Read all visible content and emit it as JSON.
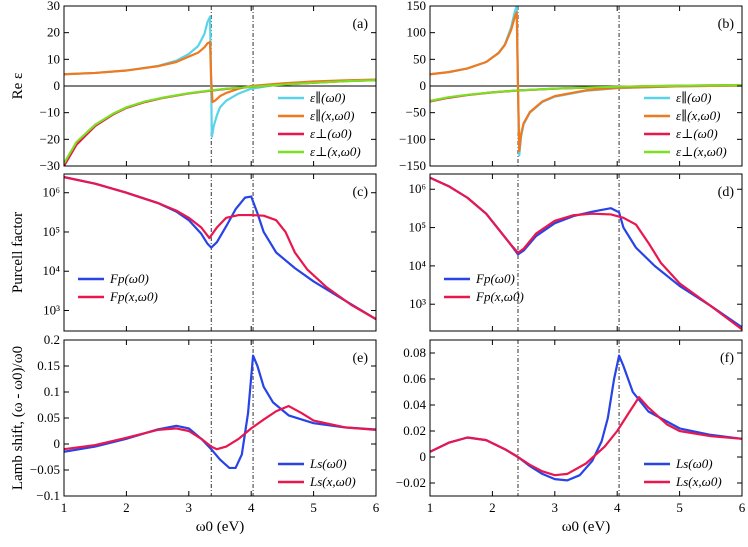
{
  "chart_data": [
    {
      "id": "a",
      "type": "line",
      "panel_label": "(a)",
      "ylabel": "Re ε",
      "xlabel": "",
      "x_scale": "linear",
      "y_scale": "linear",
      "xlim": [
        1,
        6
      ],
      "ylim": [
        -30,
        30
      ],
      "xticks": [
        1,
        2,
        3,
        4,
        5,
        6
      ],
      "xtick_labels": [
        "",
        "",
        "",
        "",
        "",
        ""
      ],
      "yticks": [
        -30,
        -20,
        -10,
        0,
        10,
        20,
        30
      ],
      "ytick_labels": [
        "−30",
        "−20",
        "−10",
        "0",
        "10",
        "20",
        "30"
      ],
      "zero_line": true,
      "vlines": [
        3.36,
        4.03
      ],
      "legend_position": "lower-right",
      "series": [
        {
          "name": "ε∥(ω0)",
          "color": "#5ad3ea",
          "x": [
            1,
            1.5,
            2,
            2.5,
            2.8,
            3,
            3.15,
            3.25,
            3.3,
            3.34,
            3.36,
            3.37,
            3.4,
            3.45,
            3.5,
            3.6,
            3.8,
            4,
            4.5,
            5,
            5.5,
            6
          ],
          "y": [
            4.4,
            4.9,
            5.8,
            7.5,
            9.5,
            12,
            15,
            19.5,
            24,
            26,
            -3,
            -19,
            -15,
            -11,
            -8,
            -5.5,
            -2.8,
            -1,
            0.8,
            1.6,
            2,
            2.3
          ]
        },
        {
          "name": "ε∥(x,ω0)",
          "color": "#f0781e",
          "x": [
            1,
            1.5,
            2,
            2.5,
            2.8,
            3,
            3.15,
            3.25,
            3.3,
            3.34,
            3.36,
            3.38,
            3.42,
            3.5,
            3.6,
            3.8,
            4,
            4.5,
            5,
            5.5,
            6
          ],
          "y": [
            4.4,
            4.9,
            5.8,
            7.4,
            9,
            11,
            12.5,
            14.5,
            16,
            16.5,
            2,
            -6,
            -5.5,
            -3.8,
            -2.6,
            -1,
            0,
            1,
            1.7,
            2.1,
            2.4
          ]
        },
        {
          "name": "ε⊥(ω0)",
          "color": "#e8174e",
          "x": [
            1,
            1.2,
            1.5,
            1.8,
            2,
            2.3,
            2.6,
            3,
            3.3,
            3.6,
            4,
            4.3,
            4.6,
            5,
            5.5,
            6
          ],
          "y": [
            -30,
            -22,
            -15,
            -10.5,
            -8.2,
            -6,
            -4.4,
            -2.8,
            -1.9,
            -1.1,
            -0.3,
            0.2,
            0.7,
            1.2,
            1.8,
            2.2
          ]
        },
        {
          "name": "ε⊥(x,ω0)",
          "color": "#7be021",
          "x": [
            1,
            1.2,
            1.5,
            1.8,
            2,
            2.3,
            2.6,
            3,
            3.3,
            3.6,
            4,
            4.3,
            4.6,
            5,
            5.5,
            6
          ],
          "y": [
            -29,
            -21,
            -14.5,
            -10.2,
            -8,
            -5.8,
            -4.3,
            -2.7,
            -1.8,
            -1,
            -0.3,
            0.2,
            0.7,
            1.2,
            1.8,
            2.2
          ]
        }
      ]
    },
    {
      "id": "b",
      "type": "line",
      "panel_label": "(b)",
      "ylabel": "",
      "xlabel": "",
      "x_scale": "linear",
      "y_scale": "linear",
      "xlim": [
        1,
        6
      ],
      "ylim": [
        -150,
        150
      ],
      "xticks": [
        1,
        2,
        3,
        4,
        5,
        6
      ],
      "xtick_labels": [
        "",
        "",
        "",
        "",
        "",
        ""
      ],
      "yticks": [
        -150,
        -100,
        -50,
        0,
        50,
        100,
        150
      ],
      "ytick_labels": [
        "−150",
        "−100",
        "−50",
        "0",
        "50",
        "100",
        "150"
      ],
      "zero_line": true,
      "vlines": [
        2.41,
        4.03
      ],
      "legend_position": "lower-right",
      "series": [
        {
          "name": "ε∥(ω0)",
          "color": "#5ad3ea",
          "x": [
            1,
            1.3,
            1.6,
            1.9,
            2.1,
            2.2,
            2.3,
            2.36,
            2.39,
            2.41,
            2.43,
            2.46,
            2.5,
            2.6,
            2.8,
            3,
            3.5,
            4,
            5,
            6
          ],
          "y": [
            22,
            26,
            33,
            45,
            62,
            78,
            110,
            140,
            150,
            0,
            -130,
            -95,
            -72,
            -50,
            -30,
            -20,
            -9,
            -4,
            -0.5,
            0.8
          ]
        },
        {
          "name": "ε∥(x,ω0)",
          "color": "#f0781e",
          "x": [
            1,
            1.3,
            1.6,
            1.9,
            2.1,
            2.2,
            2.3,
            2.36,
            2.39,
            2.41,
            2.43,
            2.46,
            2.5,
            2.6,
            2.8,
            3,
            3.5,
            4,
            5,
            6
          ],
          "y": [
            22,
            26,
            33,
            45,
            62,
            77,
            105,
            130,
            138,
            0,
            -122,
            -90,
            -70,
            -49,
            -29,
            -19,
            -8,
            -3.5,
            -0.5,
            0.8
          ]
        },
        {
          "name": "ε⊥(ω0)",
          "color": "#e8174e",
          "x": [
            1,
            1.3,
            1.6,
            2,
            2.4,
            3,
            3.5,
            4,
            4.5,
            5,
            5.5,
            6
          ],
          "y": [
            -29,
            -22,
            -17,
            -12,
            -8.5,
            -5,
            -3,
            -1.6,
            -0.4,
            0.5,
            1.2,
            1.8
          ]
        },
        {
          "name": "ε⊥(x,ω0)",
          "color": "#7be021",
          "x": [
            1,
            1.3,
            1.6,
            2,
            2.4,
            3,
            3.5,
            4,
            4.5,
            5,
            5.5,
            6
          ],
          "y": [
            -28,
            -21,
            -16.5,
            -11.8,
            -8.3,
            -4.9,
            -2.9,
            -1.5,
            -0.3,
            0.5,
            1.2,
            1.8
          ]
        }
      ]
    },
    {
      "id": "c",
      "type": "line",
      "panel_label": "(c)",
      "ylabel": "Purcell factor",
      "xlabel": "",
      "x_scale": "linear",
      "y_scale": "log",
      "xlim": [
        1,
        6
      ],
      "ylim": [
        300,
        3000000
      ],
      "xticks": [
        1,
        2,
        3,
        4,
        5,
        6
      ],
      "xtick_labels": [
        "",
        "",
        "",
        "",
        "",
        ""
      ],
      "yticks": [
        1000,
        10000,
        100000,
        1000000
      ],
      "ytick_labels": [
        "10³",
        "10⁴",
        "10⁵",
        "10⁶"
      ],
      "zero_line": false,
      "vlines": [
        3.36,
        4.03
      ],
      "legend_position": "lower-left",
      "series": [
        {
          "name": "Fp(ω0)",
          "color": "#2843e6",
          "x": [
            1,
            1.5,
            2,
            2.5,
            2.8,
            3,
            3.2,
            3.3,
            3.36,
            3.45,
            3.6,
            3.75,
            3.9,
            4,
            4.1,
            4.2,
            4.4,
            4.7,
            5,
            5.5,
            6
          ],
          "y": [
            2500000,
            1700000,
            1000000,
            550000,
            330000,
            200000,
            90000,
            50000,
            40000,
            55000,
            140000,
            380000,
            750000,
            800000,
            300000,
            100000,
            30000,
            12000,
            5500,
            1800,
            600
          ]
        },
        {
          "name": "Fp(x,ω0)",
          "color": "#e8174e",
          "x": [
            1,
            1.5,
            2,
            2.5,
            2.8,
            3,
            3.2,
            3.33,
            3.45,
            3.6,
            3.8,
            4,
            4.2,
            4.4,
            4.55,
            4.7,
            4.9,
            5.2,
            5.6,
            6
          ],
          "y": [
            2500000,
            1700000,
            1000000,
            550000,
            350000,
            230000,
            130000,
            70000,
            130000,
            230000,
            270000,
            270000,
            260000,
            200000,
            100000,
            30000,
            11000,
            4000,
            1400,
            600
          ]
        }
      ]
    },
    {
      "id": "d",
      "type": "line",
      "panel_label": "(d)",
      "ylabel": "",
      "xlabel": "",
      "x_scale": "linear",
      "y_scale": "log",
      "xlim": [
        1,
        6
      ],
      "ylim": [
        200,
        2500000
      ],
      "xticks": [
        1,
        2,
        3,
        4,
        5,
        6
      ],
      "xtick_labels": [
        "",
        "",
        "",
        "",
        "",
        ""
      ],
      "yticks": [
        1000,
        10000,
        100000,
        1000000
      ],
      "ytick_labels": [
        "10³",
        "10⁴",
        "10⁵",
        "10⁶"
      ],
      "zero_line": false,
      "vlines": [
        2.41,
        4.03
      ],
      "legend_position": "lower-left",
      "series": [
        {
          "name": "Fp(ω0)",
          "color": "#2843e6",
          "x": [
            1,
            1.3,
            1.6,
            1.9,
            2.1,
            2.3,
            2.41,
            2.5,
            2.7,
            3,
            3.3,
            3.6,
            3.9,
            4.03,
            4.1,
            4.3,
            4.6,
            5,
            5.5,
            6
          ],
          "y": [
            2000000,
            1200000,
            600000,
            230000,
            90000,
            35000,
            20000,
            25000,
            60000,
            130000,
            200000,
            260000,
            320000,
            250000,
            100000,
            30000,
            10000,
            3000,
            900,
            250
          ]
        },
        {
          "name": "Fp(x,ω0)",
          "color": "#e8174e",
          "x": [
            1,
            1.3,
            1.6,
            1.9,
            2.1,
            2.3,
            2.41,
            2.5,
            2.7,
            3,
            3.3,
            3.6,
            3.9,
            4.1,
            4.3,
            4.5,
            4.7,
            5,
            5.5,
            6
          ],
          "y": [
            2000000,
            1200000,
            600000,
            230000,
            90000,
            35000,
            22000,
            28000,
            70000,
            150000,
            210000,
            230000,
            220000,
            180000,
            120000,
            40000,
            12000,
            3500,
            900,
            220
          ]
        }
      ]
    },
    {
      "id": "e",
      "type": "line",
      "panel_label": "(e)",
      "ylabel": "Lamb shift, (ω - ω0)/ω0",
      "xlabel": "ω0 (eV)",
      "x_scale": "linear",
      "y_scale": "linear",
      "xlim": [
        1,
        6
      ],
      "ylim": [
        -0.1,
        0.2
      ],
      "xticks": [
        1,
        2,
        3,
        4,
        5,
        6
      ],
      "xtick_labels": [
        "1",
        "2",
        "3",
        "4",
        "5",
        "6"
      ],
      "yticks": [
        -0.1,
        -0.05,
        0,
        0.05,
        0.1,
        0.15,
        0.2
      ],
      "ytick_labels": [
        "−0.1",
        "−0.05",
        "0",
        "0.05",
        "0.1",
        "0.15",
        "0.2"
      ],
      "zero_line": false,
      "vlines": [
        3.36,
        4.03
      ],
      "legend_position": "lower-right",
      "series": [
        {
          "name": "Ls(ω0)",
          "color": "#2843e6",
          "x": [
            1,
            1.5,
            2,
            2.5,
            2.8,
            3,
            3.2,
            3.36,
            3.5,
            3.65,
            3.75,
            3.85,
            3.95,
            4.03,
            4.1,
            4.2,
            4.35,
            4.6,
            5,
            5.5,
            6
          ],
          "y": [
            -0.015,
            -0.005,
            0.01,
            0.028,
            0.035,
            0.03,
            0.01,
            -0.01,
            -0.03,
            -0.046,
            -0.046,
            -0.02,
            0.06,
            0.17,
            0.15,
            0.11,
            0.08,
            0.055,
            0.04,
            0.032,
            0.028
          ]
        },
        {
          "name": "Ls(x,ω0)",
          "color": "#e8174e",
          "x": [
            1,
            1.5,
            2,
            2.5,
            2.8,
            3,
            3.2,
            3.36,
            3.45,
            3.6,
            3.8,
            4,
            4.2,
            4.4,
            4.6,
            4.8,
            5,
            5.5,
            6
          ],
          "y": [
            -0.01,
            -0.002,
            0.012,
            0.027,
            0.03,
            0.025,
            0.01,
            -0.005,
            -0.01,
            -0.005,
            0.01,
            0.03,
            0.047,
            0.063,
            0.073,
            0.06,
            0.045,
            0.032,
            0.027
          ]
        }
      ]
    },
    {
      "id": "f",
      "type": "line",
      "panel_label": "(f)",
      "ylabel": "",
      "xlabel": "ω0 (eV)",
      "x_scale": "linear",
      "y_scale": "linear",
      "xlim": [
        1,
        6
      ],
      "ylim": [
        -0.03,
        0.09
      ],
      "xticks": [
        1,
        2,
        3,
        4,
        5,
        6
      ],
      "xtick_labels": [
        "1",
        "2",
        "3",
        "4",
        "5",
        "6"
      ],
      "yticks": [
        -0.02,
        0,
        0.02,
        0.04,
        0.06,
        0.08
      ],
      "ytick_labels": [
        "−0.02",
        "0",
        "0.02",
        "0.04",
        "0.06",
        "0.08"
      ],
      "zero_line": false,
      "vlines": [
        2.41,
        4.03
      ],
      "legend_position": "lower-right",
      "series": [
        {
          "name": "Ls(ω0)",
          "color": "#2843e6",
          "x": [
            1,
            1.3,
            1.6,
            1.9,
            2.2,
            2.41,
            2.6,
            2.8,
            3,
            3.2,
            3.4,
            3.6,
            3.75,
            3.85,
            3.95,
            4.03,
            4.1,
            4.25,
            4.5,
            5,
            5.5,
            6
          ],
          "y": [
            0.004,
            0.011,
            0.015,
            0.013,
            0.006,
            0,
            -0.007,
            -0.013,
            -0.017,
            -0.018,
            -0.014,
            -0.003,
            0.012,
            0.03,
            0.06,
            0.078,
            0.07,
            0.05,
            0.035,
            0.022,
            0.017,
            0.014
          ]
        },
        {
          "name": "Ls(x,ω0)",
          "color": "#e8174e",
          "x": [
            1,
            1.3,
            1.6,
            1.9,
            2.2,
            2.41,
            2.6,
            2.8,
            3,
            3.2,
            3.5,
            3.8,
            4,
            4.2,
            4.35,
            4.5,
            4.8,
            5,
            5.5,
            6
          ],
          "y": [
            0.004,
            0.011,
            0.015,
            0.013,
            0.006,
            0,
            -0.006,
            -0.011,
            -0.014,
            -0.013,
            -0.005,
            0.008,
            0.02,
            0.035,
            0.046,
            0.038,
            0.025,
            0.02,
            0.016,
            0.014
          ]
        }
      ]
    }
  ]
}
